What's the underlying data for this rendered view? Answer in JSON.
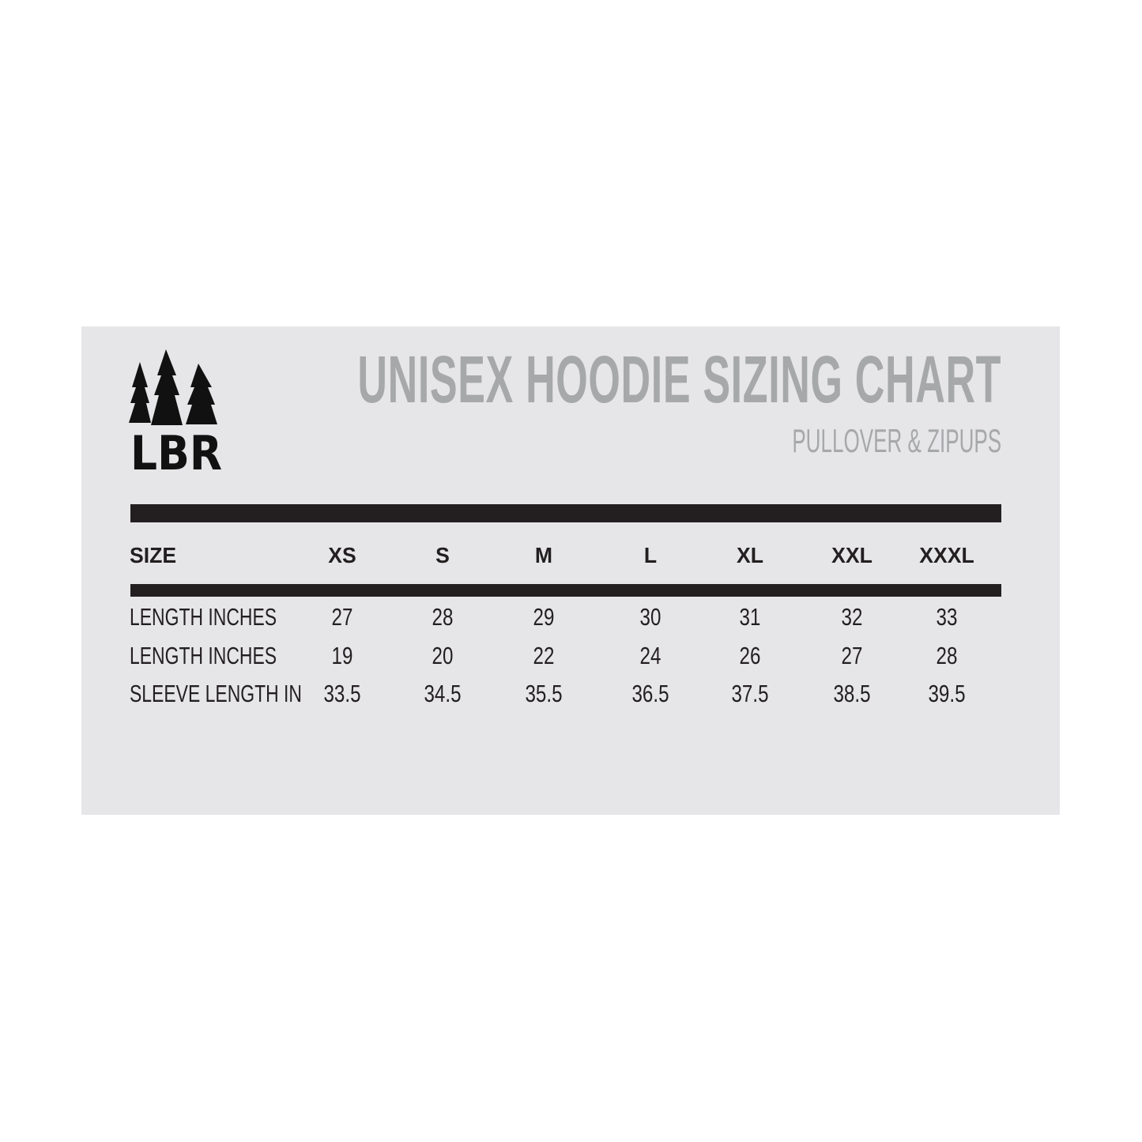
{
  "brand": {
    "logo_text": "LBR"
  },
  "header": {
    "title": "UNISEX HOODIE SIZING CHART",
    "subtitle": "PULLOVER & ZIPUPS"
  },
  "colors": {
    "panel": "#e6e6e8",
    "title": "#a7a8aa",
    "bars": "#231f20"
  },
  "table": {
    "header_label": "SIZE",
    "sizes": [
      "XS",
      "S",
      "M",
      "L",
      "XL",
      "XXL",
      "XXXL"
    ],
    "rows": [
      {
        "label": "LENGTH INCHES",
        "values": [
          "27",
          "28",
          "29",
          "30",
          "31",
          "32",
          "33"
        ]
      },
      {
        "label": "LENGTH INCHES",
        "values": [
          "19",
          "20",
          "22",
          "24",
          "26",
          "27",
          "28"
        ]
      },
      {
        "label": "SLEEVE LENGTH IN",
        "values": [
          "33.5",
          "34.5",
          "35.5",
          "36.5",
          "37.5",
          "38.5",
          "39.5"
        ]
      }
    ]
  }
}
